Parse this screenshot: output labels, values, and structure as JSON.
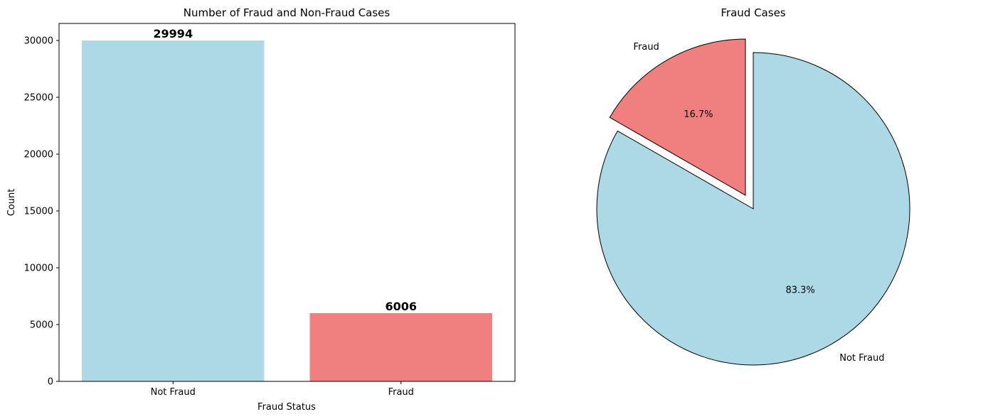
{
  "chart_data": [
    {
      "type": "bar",
      "title": "Number of Fraud and Non-Fraud Cases",
      "xlabel": "Fraud Status",
      "ylabel": "Count",
      "categories": [
        "Not Fraud",
        "Fraud"
      ],
      "values": [
        29994,
        6006
      ],
      "value_labels": [
        "29994",
        "6006"
      ],
      "colors": [
        "#add8e6",
        "#f08080"
      ],
      "ylim": [
        0,
        31500
      ],
      "yticks": [
        0,
        5000,
        10000,
        15000,
        20000,
        25000,
        30000
      ],
      "ytick_labels": [
        "0",
        "5000",
        "10000",
        "15000",
        "20000",
        "25000",
        "30000"
      ],
      "grid": false
    },
    {
      "type": "pie",
      "title": "Fraud Cases",
      "labels": [
        "Fraud",
        "Not Fraud"
      ],
      "values": [
        16.7,
        83.3
      ],
      "pct_labels": [
        "16.7%",
        "83.3%"
      ],
      "colors": [
        "#f08080",
        "#add8e6"
      ],
      "explode": [
        0.1,
        0
      ],
      "start_angle": 90,
      "edgecolor": "#000000"
    }
  ]
}
